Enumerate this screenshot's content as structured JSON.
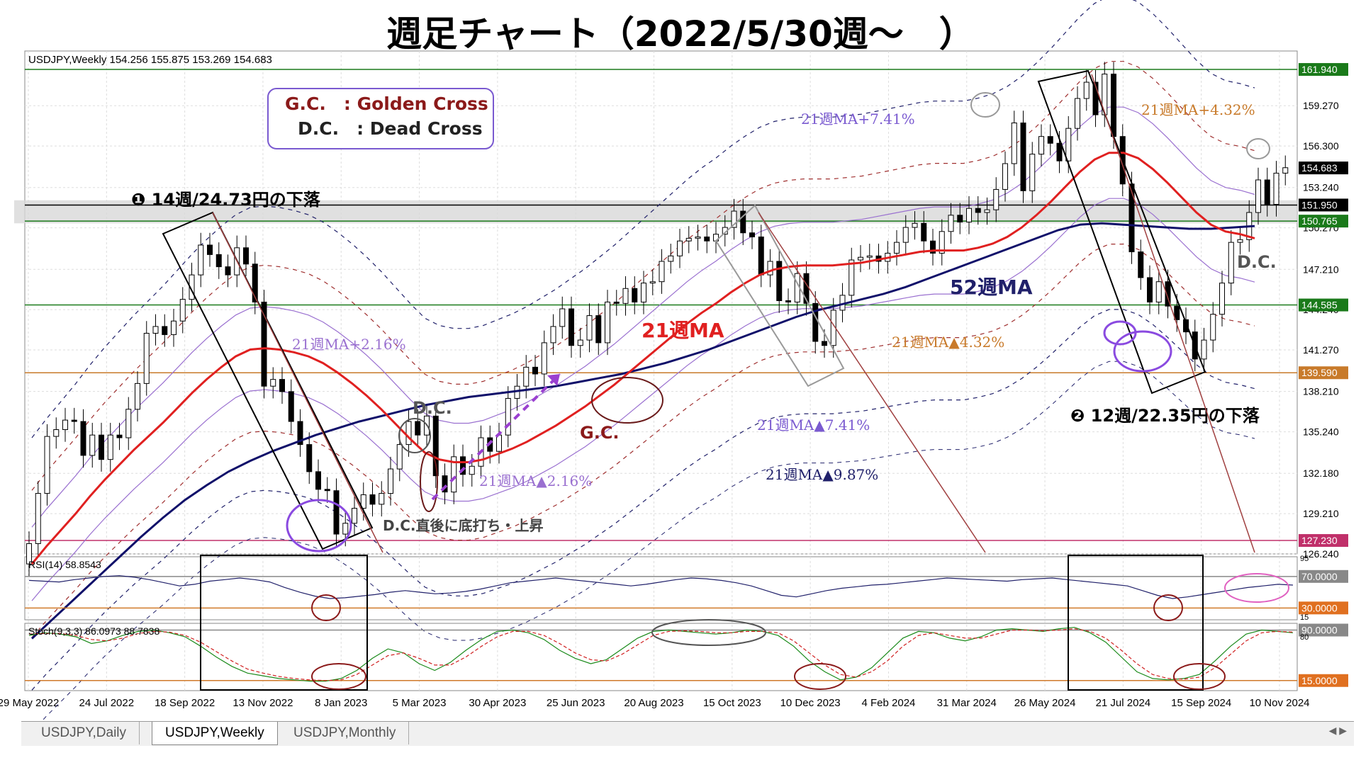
{
  "title": "週足チャート（2022/5/30週～　）",
  "chart_data": {
    "type": "candlestick",
    "symbol_header": "USDJPY,Weekly  154.256 155.875 153.269 154.683",
    "ylim": [
      126.24,
      163.3
    ],
    "y_ticks": [
      "126.240",
      "129.210",
      "132.180",
      "135.240",
      "138.210",
      "141.270",
      "144.240",
      "147.210",
      "150.270",
      "153.240",
      "156.300",
      "159.270"
    ],
    "x_ticks": [
      "29 May 2022",
      "24 Jul 2022",
      "18 Sep 2022",
      "13 Nov 2022",
      "8 Jan 2023",
      "5 Mar 2023",
      "30 Apr 2023",
      "25 Jun 2023",
      "20 Aug 2023",
      "15 Oct 2023",
      "10 Dec 2023",
      "4 Feb 2024",
      "31 Mar 2024",
      "26 May 2024",
      "21 Jul 2024",
      "15 Sep 2024",
      "10 Nov 2024"
    ],
    "weekly_close": [
      127.0,
      130.7,
      134.9,
      135.4,
      136.1,
      136.0,
      133.5,
      135.0,
      133.2,
      135.0,
      134.8,
      136.9,
      138.8,
      142.5,
      143.0,
      142.4,
      143.4,
      145.0,
      146.8,
      149.0,
      148.3,
      147.4,
      146.8,
      148.8,
      147.6,
      144.8,
      138.6,
      139.1,
      138.2,
      136.0,
      134.3,
      132.3,
      131.0,
      130.9,
      127.7,
      128.5,
      129.6,
      130.6,
      129.9,
      130.7,
      132.5,
      134.3,
      136.0,
      135.0,
      136.4,
      132.0,
      130.8,
      133.4,
      132.1,
      132.7,
      134.8,
      133.8,
      135.0,
      137.7,
      138.6,
      140.0,
      139.5,
      141.8,
      143.0,
      144.3,
      141.6,
      142.0,
      143.8,
      141.8,
      144.8,
      144.7,
      145.8,
      144.8,
      146.2,
      146.3,
      147.8,
      148.2,
      149.3,
      149.5,
      149.6,
      149.3,
      149.8,
      150.3,
      151.5,
      149.9,
      149.6,
      146.8,
      147.8,
      144.9,
      144.8,
      146.9,
      144.7,
      141.9,
      141.6,
      144.2,
      145.3,
      147.9,
      148.1,
      148.2,
      147.8,
      148.4,
      149.2,
      150.3,
      150.6,
      149.3,
      148.4,
      150.0,
      151.2,
      150.7,
      151.7,
      151.4,
      151.6,
      153.1,
      155.0,
      158.0,
      153.0,
      155.7,
      157.0,
      156.5,
      155.2,
      157.6,
      159.8,
      161.0,
      158.6,
      161.6,
      157.0,
      153.5,
      148.5,
      146.6,
      144.8,
      146.3,
      144.5,
      143.5,
      142.6,
      140.6,
      142.0,
      143.9,
      146.2,
      149.2,
      149.4,
      151.4,
      153.8,
      152.0,
      154.3,
      154.7
    ],
    "ma21": [
      125.5,
      126.8,
      128.0,
      129.2,
      130.5,
      131.7,
      132.8,
      133.9,
      134.9,
      135.9,
      137.0,
      138.1,
      139.1,
      140.0,
      140.8,
      141.3,
      141.4,
      141.3,
      141.1,
      140.8,
      140.3,
      139.6,
      138.8,
      137.9,
      136.9,
      135.8,
      134.7,
      133.7,
      133.2,
      133.0,
      133.0,
      133.2,
      133.6,
      134.0,
      134.5,
      135.1,
      135.7,
      136.4,
      137.1,
      137.9,
      138.7,
      139.6,
      140.5,
      141.4,
      142.3,
      143.2,
      144.0,
      144.7,
      145.5,
      146.2,
      146.8,
      147.2,
      147.4,
      147.5,
      147.5,
      147.5,
      147.6,
      147.7,
      147.9,
      148.1,
      148.3,
      148.5,
      148.6,
      148.6,
      148.6,
      148.8,
      149.1,
      149.6,
      150.3,
      151.2,
      152.2,
      153.3,
      154.4,
      155.3,
      155.8,
      155.8,
      155.4,
      154.6,
      153.6,
      152.5,
      151.4,
      150.5,
      150.0,
      149.8,
      149.5
    ],
    "ma52": [
      120.0,
      121.5,
      123.0,
      124.5,
      126.0,
      127.5,
      128.9,
      130.2,
      131.3,
      132.3,
      133.1,
      133.8,
      134.4,
      135.0,
      135.5,
      136.0,
      136.4,
      136.8,
      137.2,
      137.5,
      137.8,
      138.0,
      138.2,
      138.4,
      138.6,
      138.9,
      139.2,
      139.5,
      139.9,
      140.3,
      140.8,
      141.3,
      141.9,
      142.5,
      143.1,
      143.7,
      144.2,
      144.6,
      145.0,
      145.4,
      145.9,
      146.5,
      147.1,
      147.7,
      148.3,
      148.9,
      149.5,
      150.1,
      150.5,
      150.6,
      150.5,
      150.4,
      150.3,
      150.2,
      150.2,
      150.3,
      150.4
    ],
    "annotations": {
      "legend_gc": "G.C.　: Golden Cross",
      "legend_dc": "D.C.　: Dead Cross",
      "drop1": "❶ 14週/24.73円の下落",
      "drop2": "❷ 12週/22.35円の下落",
      "ma21_label": "21週MA",
      "ma52_label": "52週MA",
      "band_p741": "21週MA+7.41%",
      "band_p432": "21週MA+4.32%",
      "band_p216": "21週MA+2.16%",
      "band_m432": "21週MA▲4.32%",
      "band_m741": "21週MA▲7.41%",
      "band_m216": "21週MA▲2.16%",
      "band_m987": "21週MA▲9.87%",
      "dc1": "D.C.",
      "gc1": "G.C.",
      "dc2": "D.C.",
      "bottom_note": "D.C.直後に底打ち・上昇"
    },
    "horizontal_levels": [
      {
        "value": 161.94,
        "label": "161.940",
        "color": "#1a7a1a"
      },
      {
        "value": 151.95,
        "label": "151.950",
        "color": "#000000"
      },
      {
        "value": 150.765,
        "label": "150.765",
        "color": "#1a7a1a"
      },
      {
        "value": 144.585,
        "label": "144.585",
        "color": "#1a7a1a"
      },
      {
        "value": 139.59,
        "label": "139.590",
        "color": "#c87a2a"
      },
      {
        "value": 127.23,
        "label": "127.230",
        "color": "#c0306a"
      }
    ],
    "current_price": {
      "value": 154.683,
      "label": "154.683"
    },
    "rsi": {
      "header": "RSI(14) 58.8543",
      "scale_labels": [
        "95",
        "70.0000",
        "30.0000",
        "15"
      ],
      "values": [
        65,
        64,
        63,
        66,
        68,
        70,
        71,
        69,
        66,
        62,
        58,
        60,
        64,
        66,
        68,
        66,
        63,
        56,
        50,
        45,
        42,
        43,
        45,
        47,
        50,
        52,
        50,
        48,
        49,
        51,
        54,
        58,
        62,
        64,
        66,
        68,
        66,
        64,
        62,
        60,
        58,
        60,
        63,
        66,
        68,
        67,
        65,
        62,
        58,
        52,
        46,
        44,
        48,
        52,
        55,
        57,
        59,
        60,
        62,
        64,
        66,
        68,
        67,
        66,
        65,
        64,
        66,
        67,
        68,
        66,
        64,
        62,
        60,
        58,
        52,
        46,
        42,
        44,
        47,
        50,
        53,
        56,
        58,
        60,
        59
      ]
    },
    "stoch": {
      "header": "Stoch(9,3,3) 86.0973 88.7838",
      "scale_labels": [
        "90.0000",
        "80",
        "15.0000"
      ],
      "k": [
        82,
        86,
        84,
        80,
        70,
        74,
        82,
        88,
        90,
        86,
        80,
        66,
        50,
        36,
        26,
        22,
        18,
        16,
        14,
        14,
        18,
        30,
        48,
        62,
        56,
        40,
        30,
        42,
        60,
        76,
        88,
        90,
        86,
        76,
        60,
        48,
        40,
        46,
        62,
        78,
        88,
        90,
        88,
        86,
        84,
        86,
        90,
        88,
        82,
        66,
        44,
        28,
        16,
        20,
        34,
        56,
        78,
        88,
        86,
        78,
        74,
        80,
        90,
        92,
        90,
        88,
        92,
        94,
        86,
        72,
        50,
        28,
        18,
        16,
        18,
        24,
        44,
        66,
        84,
        90,
        88,
        86
      ],
      "d": [
        84,
        85,
        85,
        82,
        76,
        74,
        78,
        85,
        88,
        87,
        82,
        72,
        58,
        44,
        32,
        26,
        21,
        18,
        16,
        15,
        16,
        24,
        38,
        52,
        56,
        48,
        38,
        38,
        50,
        66,
        80,
        88,
        88,
        82,
        70,
        56,
        46,
        44,
        54,
        68,
        82,
        88,
        89,
        88,
        86,
        86,
        88,
        88,
        86,
        74,
        56,
        38,
        24,
        20,
        28,
        44,
        66,
        82,
        86,
        82,
        78,
        78,
        84,
        90,
        90,
        89,
        90,
        92,
        88,
        78,
        60,
        40,
        24,
        18,
        17,
        20,
        34,
        54,
        74,
        86,
        88,
        87
      ]
    },
    "tabs": [
      "USDJPY,Daily",
      "USDJPY,Weekly",
      "USDJPY,Monthly"
    ],
    "active_tab": "USDJPY,Weekly"
  }
}
